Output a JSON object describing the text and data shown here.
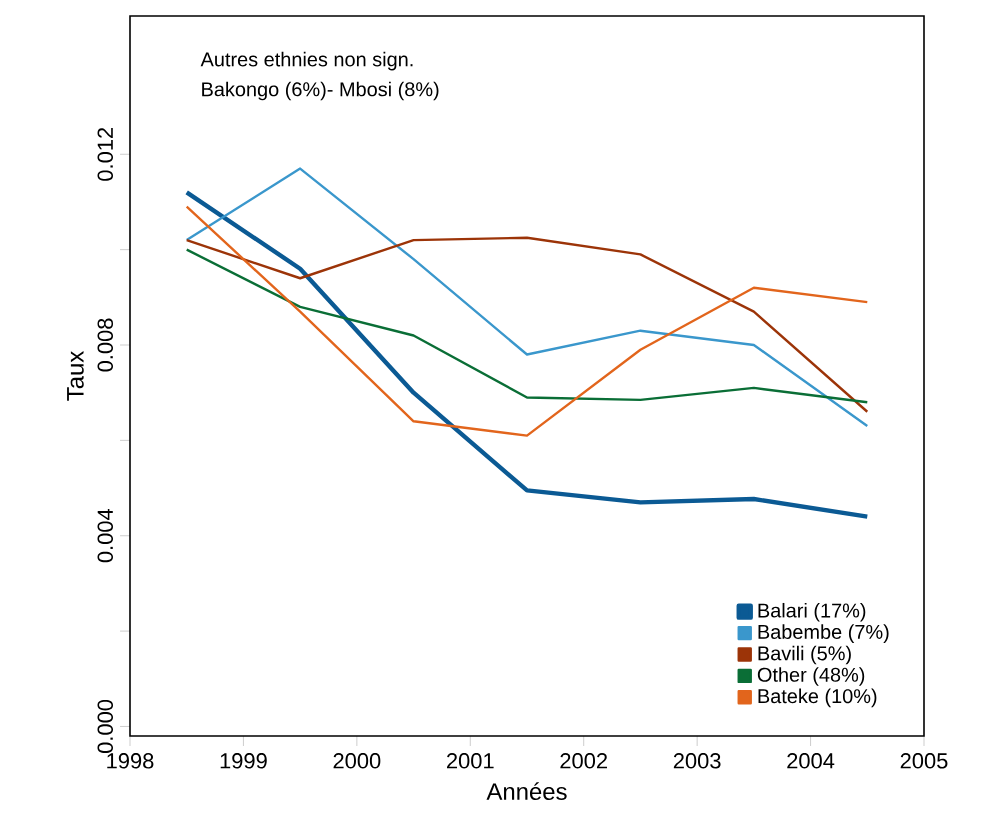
{
  "chart_data": {
    "type": "line",
    "xlabel": "Années",
    "ylabel": "Taux",
    "annotations": [
      "Autres ethnies non sign.",
      "Bakongo (6%)- Mbosi (8%)"
    ],
    "x": [
      1998.5,
      1999.5,
      2000.5,
      2001.5,
      2002.5,
      2003.5,
      2004.5
    ],
    "series": [
      {
        "name": "Balari (17%)",
        "color": "#0b5a94",
        "values": [
          0.0112,
          0.0096,
          0.007,
          0.00495,
          0.0047,
          0.00477,
          0.0044
        ]
      },
      {
        "name": "Babembe (7%)",
        "color": "#3a97cc",
        "values": [
          0.0102,
          0.0117,
          0.0098,
          0.0078,
          0.0083,
          0.008,
          0.0063
        ]
      },
      {
        "name": "Bavili (5%)",
        "color": "#9c3408",
        "values": [
          0.0102,
          0.0094,
          0.0102,
          0.01025,
          0.0099,
          0.0087,
          0.0066
        ]
      },
      {
        "name": "Other (48%)",
        "color": "#0a6e36",
        "values": [
          0.01,
          0.0088,
          0.0082,
          0.0069,
          0.00685,
          0.0071,
          0.0068
        ]
      },
      {
        "name": "Bateke (10%)",
        "color": "#e2651c",
        "values": [
          0.0109,
          0.0087,
          0.0064,
          0.0061,
          0.0079,
          0.0092,
          0.0089
        ]
      }
    ],
    "xlim": [
      1998,
      2005
    ],
    "ylim": [
      -0.0002,
      0.0149
    ],
    "xticks": [
      1998,
      1999,
      2000,
      2001,
      2002,
      2003,
      2004,
      2005
    ],
    "yticks": [
      {
        "value": 0,
        "label": "0.000"
      },
      {
        "value": 0.002,
        "label": null
      },
      {
        "value": 0.004,
        "label": "0.004"
      },
      {
        "value": 0.006,
        "label": null
      },
      {
        "value": 0.008,
        "label": "0.008"
      },
      {
        "value": 0.01,
        "label": null
      },
      {
        "value": 0.012,
        "label": "0.012"
      }
    ],
    "legend": "bottom right"
  }
}
